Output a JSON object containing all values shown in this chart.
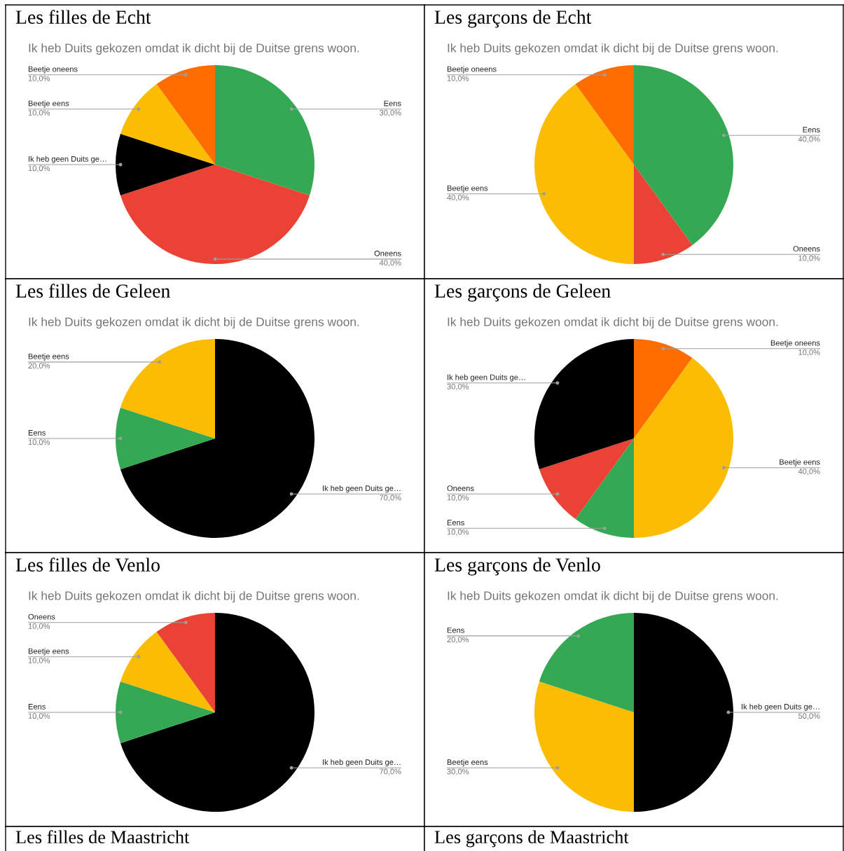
{
  "chart_data": [
    {
      "type": "pie",
      "title": "Les filles de Echt",
      "subtitle": "Ik heb Duits gekozen omdat ik dicht bij de Duitse grens woon.",
      "categories": [
        "Eens",
        "Oneens",
        "Ik heb geen Duits ge…",
        "Beetje eens",
        "Beetje oneens"
      ],
      "values": [
        30,
        40,
        10,
        10,
        10
      ],
      "colors": [
        "#34a853",
        "#ea4335",
        "#000000",
        "#fbbc04",
        "#ff6d01"
      ],
      "value_labels": [
        "30,0%",
        "40,0%",
        "10,0%",
        "10,0%",
        "10,0%"
      ]
    },
    {
      "type": "pie",
      "title": "Les garçons de Echt",
      "subtitle": "Ik heb Duits gekozen omdat ik dicht bij de Duitse grens woon.",
      "categories": [
        "Eens",
        "Oneens",
        "Beetje eens",
        "Beetje oneens"
      ],
      "values": [
        40,
        10,
        40,
        10
      ],
      "colors": [
        "#34a853",
        "#ea4335",
        "#fbbc04",
        "#ff6d01"
      ],
      "value_labels": [
        "40,0%",
        "10,0%",
        "40,0%",
        "10,0%"
      ]
    },
    {
      "type": "pie",
      "title": "Les filles de Geleen",
      "subtitle": "Ik heb Duits gekozen omdat ik dicht bij de Duitse grens woon.",
      "categories": [
        "Ik heb geen Duits ge…",
        "Eens",
        "Beetje eens"
      ],
      "values": [
        70,
        10,
        20
      ],
      "colors": [
        "#000000",
        "#34a853",
        "#fbbc04"
      ],
      "value_labels": [
        "70,0%",
        "10,0%",
        "20,0%"
      ]
    },
    {
      "type": "pie",
      "title": "Les garçons de Geleen",
      "subtitle": "Ik heb Duits gekozen omdat ik dicht bij de Duitse grens woon.",
      "categories": [
        "Beetje oneens",
        "Beetje eens",
        "Eens",
        "Oneens",
        "Ik heb geen Duits ge…"
      ],
      "values": [
        10,
        40,
        10,
        10,
        30
      ],
      "colors": [
        "#ff6d01",
        "#fbbc04",
        "#34a853",
        "#ea4335",
        "#000000"
      ],
      "value_labels": [
        "10,0%",
        "40,0%",
        "10,0%",
        "10,0%",
        "30,0%"
      ]
    },
    {
      "type": "pie",
      "title": "Les filles de Venlo",
      "subtitle": "Ik heb Duits gekozen omdat ik dicht bij de Duitse grens woon.",
      "categories": [
        "Ik heb geen Duits ge…",
        "Eens",
        "Beetje eens",
        "Oneens"
      ],
      "values": [
        70,
        10,
        10,
        10
      ],
      "colors": [
        "#000000",
        "#34a853",
        "#fbbc04",
        "#ea4335"
      ],
      "value_labels": [
        "70,0%",
        "10,0%",
        "10,0%",
        "10,0%"
      ]
    },
    {
      "type": "pie",
      "title": "Les garçons de Venlo",
      "subtitle": "Ik heb Duits gekozen omdat ik dicht bij de Duitse grens woon.",
      "categories": [
        "Ik heb geen Duits ge…",
        "Beetje eens",
        "Eens"
      ],
      "values": [
        50,
        30,
        20
      ],
      "colors": [
        "#000000",
        "#fbbc04",
        "#34a853"
      ],
      "value_labels": [
        "50,0%",
        "30,0%",
        "20,0%"
      ]
    },
    {
      "type": "other",
      "title": "Les filles de Maastricht"
    },
    {
      "type": "other",
      "title": "Les garçons de Maastricht"
    }
  ]
}
